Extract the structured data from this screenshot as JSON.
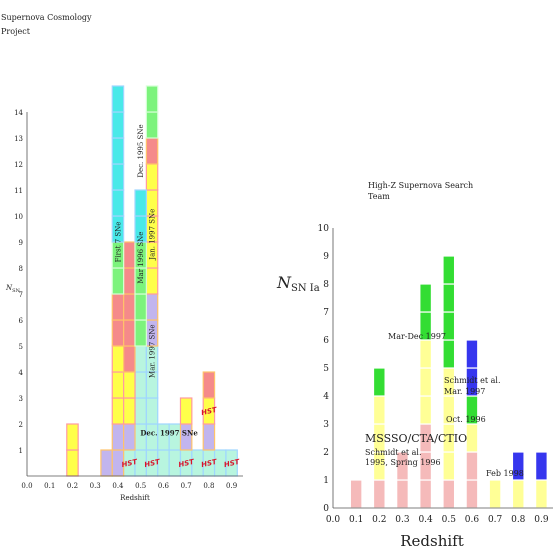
{
  "chart_data": [
    {
      "type": "bar",
      "title": "Supernova Cosmology Project",
      "title_lines": [
        "Supernova Cosmology",
        "Project"
      ],
      "xlabel": "Redshift",
      "ylabel": "N",
      "ylabel_sub": "SN",
      "xlim": [
        0,
        0.95
      ],
      "ylim": [
        0,
        14
      ],
      "x_ticks": [
        "0.0",
        "0.1",
        "0.2",
        "0.3",
        "0.4",
        "0.5",
        "0.6",
        "0.7",
        "0.8",
        "0.9"
      ],
      "y_ticks": [
        "1",
        "2",
        "3",
        "4",
        "5",
        "6",
        "7",
        "8",
        "9",
        "10",
        "11",
        "12",
        "13",
        "14"
      ],
      "series": [
        {
          "name": "Dec. 1997 SNe",
          "color": "#b8f5df",
          "x": [
            0.45,
            0.5,
            0.55,
            0.6,
            0.65,
            0.7,
            0.75,
            0.8,
            0.85,
            0.9
          ],
          "values": [
            1,
            5,
            5,
            2,
            2,
            1,
            1,
            1,
            1,
            1
          ]
        },
        {
          "name": "Mar. 1997 SNe",
          "color": "#c2b5ee",
          "x": [
            0.35,
            0.4,
            0.45,
            0.55,
            0.7,
            0.8
          ],
          "values": [
            1,
            2,
            1,
            2,
            1,
            1
          ]
        },
        {
          "name": "Jan. 1997 SNe",
          "color": "#ffff4a",
          "x": [
            0.2,
            0.4,
            0.45,
            0.55,
            0.7,
            0.8
          ],
          "values": [
            2,
            3,
            2,
            5,
            1,
            1
          ]
        },
        {
          "name": "Mar 1996 SNe",
          "color": "#f58a8a",
          "x": [
            0.4,
            0.45,
            0.55,
            0.8
          ],
          "values": [
            2,
            5,
            1,
            1
          ]
        },
        {
          "name": "Dec. 1995 SNe",
          "color": "#7cf37c",
          "x": [
            0.4,
            0.5,
            0.55
          ],
          "values": [
            2,
            4,
            2
          ]
        },
        {
          "name": "First 7 SNe",
          "color": "#49e9e9",
          "x": [
            0.4,
            0.5
          ],
          "values": [
            6,
            2
          ]
        }
      ],
      "hst_label": "HST",
      "hst_bins": [
        0.45,
        0.55,
        0.7,
        0.8,
        0.9
      ]
    },
    {
      "type": "bar",
      "title": "High-Z Supernova Search Team",
      "title_lines": [
        "High-Z Supernova Search",
        "Team"
      ],
      "xlabel": "Redshift",
      "ylabel": "N",
      "ylabel_sub": "SN Ia",
      "xlim": [
        0,
        0.95
      ],
      "ylim": [
        0,
        10
      ],
      "x_ticks": [
        "0.0",
        "0.1",
        "0.2",
        "0.3",
        "0.4",
        "0.5",
        "0.6",
        "0.7",
        "0.8",
        "0.9"
      ],
      "y_ticks": [
        "0",
        "1",
        "2",
        "3",
        "4",
        "5",
        "6",
        "7",
        "8",
        "9",
        "10"
      ],
      "series": [
        {
          "name": "MSSSO/CTA/CTIO Schmidt et al. 1995, Spring 1996",
          "label_lines": [
            "MSSSO/CTA/CTIO",
            "Schmidt et al.",
            "1995, Spring 1996"
          ],
          "color": "#f5baba",
          "x": [
            0.1,
            0.2,
            0.3,
            0.4,
            0.5,
            0.6
          ],
          "values": [
            1,
            1,
            2,
            3,
            1,
            2
          ]
        },
        {
          "name": "Oct. 1996",
          "label_lines": [
            "Oct. 1996"
          ],
          "color": "#ffff96",
          "x": [
            0.2,
            0.4,
            0.5,
            0.6,
            0.7,
            0.8,
            0.9
          ],
          "values": [
            3,
            1,
            3,
            1,
            1,
            1,
            1
          ]
        },
        {
          "name": "Schmidt et al. Mar. 1997",
          "label_lines": [
            "Schmidt et al.",
            "Mar. 1997"
          ],
          "color": "#ffff96",
          "x": [
            0.4,
            0.5
          ],
          "values": [
            2,
            1
          ]
        },
        {
          "name": "Mar-Dec 1997",
          "label_lines": [
            "Mar-Dec 1997"
          ],
          "color": "#33dd33",
          "x": [
            0.2,
            0.4,
            0.5,
            0.6
          ],
          "values": [
            1,
            2,
            4,
            1
          ]
        },
        {
          "name": "Feb 1998",
          "label_lines": [
            "Feb 1998"
          ],
          "color": "#3636ee",
          "x": [
            0.6,
            0.8,
            0.9
          ],
          "values": [
            2,
            1,
            1
          ]
        }
      ]
    }
  ]
}
